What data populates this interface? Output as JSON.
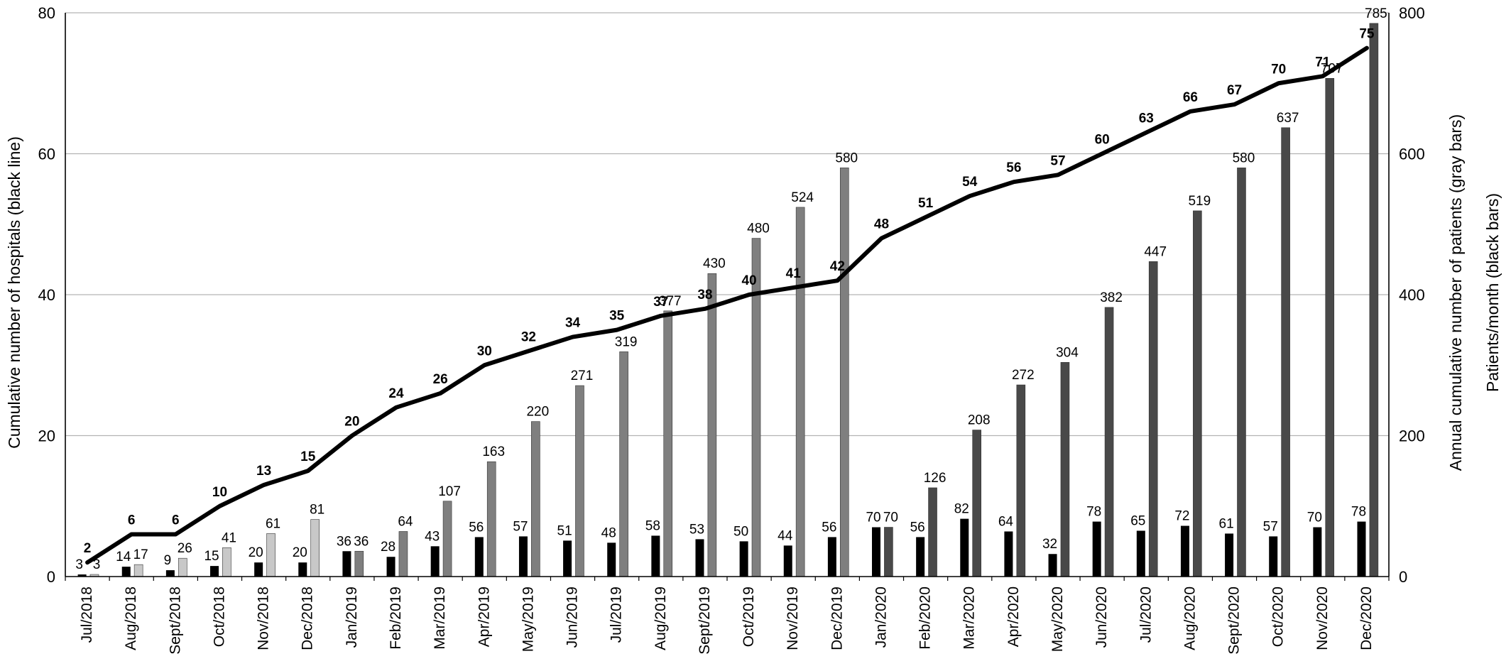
{
  "chart_data": {
    "type": "bar",
    "categories": [
      "Jul/2018",
      "Aug/2018",
      "Sept/2018",
      "Oct/2018",
      "Nov/2018",
      "Dec/2018",
      "Jan/2019",
      "Feb/2019",
      "Mar/2019",
      "Apr/2019",
      "May/2019",
      "Jun/2019",
      "Jul/2019",
      "Aug/2019",
      "Sept/2019",
      "Oct/2019",
      "Nov/2019",
      "Dec/2019",
      "Jan/2020",
      "Feb/2020",
      "Mar/2020",
      "Apr/2020",
      "May/2020",
      "Jun/2020",
      "Jul/2020",
      "Aug/2020",
      "Sept/2020",
      "Oct/2020",
      "Nov/2020",
      "Dec/2020"
    ],
    "ylabel_left": "Cumulative number of hospitals (black line)",
    "ylabel_right": "Annual cumulative number of patients (gray bars)",
    "ylabel_right2": "Patients/month (black bars)",
    "ylim_left": [
      0,
      80
    ],
    "yticks_left": [
      0,
      20,
      40,
      60,
      80
    ],
    "ylim_right": [
      0,
      800
    ],
    "yticks_right": [
      0,
      200,
      400,
      600,
      800
    ],
    "grid": true,
    "series": [
      {
        "type": "line",
        "axis": "left",
        "color": "#000000",
        "values": [
          2,
          6,
          6,
          10,
          13,
          15,
          20,
          24,
          26,
          30,
          32,
          34,
          35,
          37,
          38,
          40,
          41,
          42,
          48,
          51,
          54,
          56,
          57,
          60,
          63,
          66,
          67,
          70,
          71,
          75
        ]
      },
      {
        "type": "bar",
        "axis": "right",
        "color": "#000000",
        "values": [
          3,
          14,
          9,
          15,
          20,
          20,
          36,
          28,
          43,
          56,
          57,
          51,
          48,
          58,
          53,
          50,
          44,
          56,
          70,
          56,
          82,
          64,
          32,
          78,
          65,
          72,
          61,
          57,
          70,
          78
        ]
      },
      {
        "type": "bar",
        "axis": "right",
        "colors_by_year": {
          "2018": "#c8c8c8",
          "2019": "#7f7f7f",
          "2020": "#494949"
        },
        "values": [
          3,
          17,
          26,
          41,
          61,
          81,
          36,
          64,
          107,
          163,
          220,
          271,
          319,
          377,
          430,
          480,
          524,
          580,
          70,
          126,
          208,
          272,
          304,
          382,
          447,
          519,
          580,
          637,
          707,
          785
        ]
      }
    ]
  }
}
